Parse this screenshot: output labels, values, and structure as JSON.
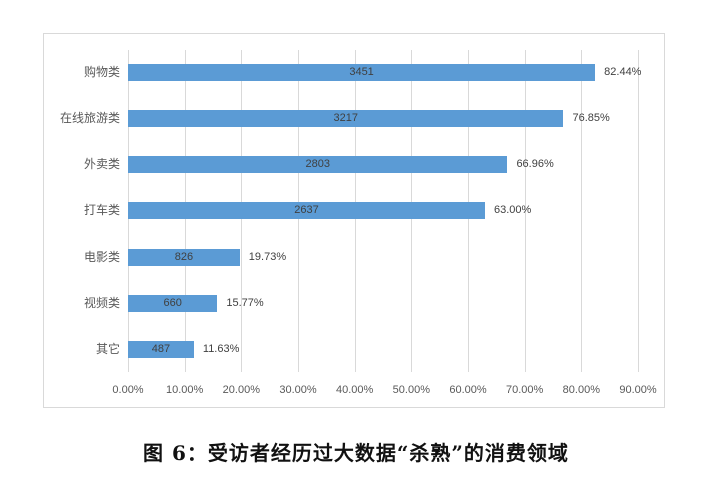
{
  "caption": "图 6：受访者经历过大数据“杀熟”的消费领域",
  "chart_data": {
    "type": "bar",
    "orientation": "horizontal",
    "title": "图 6：受访者经历过大数据“杀熟”的消费领域",
    "xlabel": "",
    "ylabel": "",
    "categories": [
      "购物类",
      "在线旅游类",
      "外卖类",
      "打车类",
      "电影类",
      "视频类",
      "其它"
    ],
    "counts": [
      3451,
      3217,
      2803,
      2637,
      826,
      660,
      487
    ],
    "values": [
      82.44,
      76.85,
      66.96,
      63.0,
      19.73,
      15.77,
      11.63
    ],
    "value_labels": [
      "82.44%",
      "76.85%",
      "66.96%",
      "63.00%",
      "19.73%",
      "15.77%",
      "11.63%"
    ],
    "count_labels": [
      "3451",
      "3217",
      "2803",
      "2637",
      "826",
      "660",
      "487"
    ],
    "xlim": [
      0,
      90
    ],
    "x_ticks": [
      "0.00%",
      "10.00%",
      "20.00%",
      "30.00%",
      "40.00%",
      "50.00%",
      "60.00%",
      "70.00%",
      "80.00%",
      "90.00%"
    ],
    "grid": true,
    "legend": "none",
    "bar_color": "#5b9bd5"
  }
}
